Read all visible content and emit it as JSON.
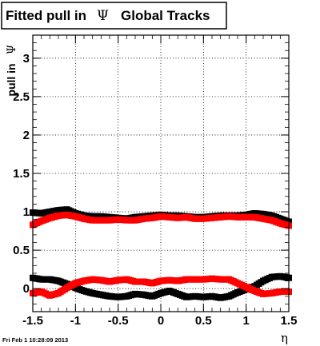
{
  "title": {
    "prefix": "Fitted pull in",
    "symbol": "Ψ",
    "suffix": "Global Tracks"
  },
  "ylabel": {
    "text": "pull in",
    "symbol": "Ψ"
  },
  "xlabel": "η",
  "footer": "Fri Feb  1 10:28:09 2013",
  "chart_data": {
    "type": "scatter",
    "title": "Fitted pull in Ψ Global Tracks",
    "xlabel": "η",
    "ylabel": "pull in Ψ",
    "xlim": [
      -1.5,
      1.5
    ],
    "ylim": [
      -0.3,
      3.3
    ],
    "grid": true,
    "x_ticks": [
      "-1.5",
      "-1",
      "-0.5",
      "0",
      "0.5",
      "1",
      "1.5"
    ],
    "y_ticks": [
      "0",
      "0.5",
      "1",
      "1.5",
      "2",
      "2.5",
      "3"
    ],
    "colors": {
      "black": "#000000",
      "red": "#ff0000"
    },
    "series": [
      {
        "color": "#000000",
        "x": [
          -1.5,
          -1.4,
          -1.3,
          -1.2,
          -1.1,
          -1.0,
          -0.9,
          -0.8,
          -0.7,
          -0.6,
          -0.5,
          -0.4,
          -0.3,
          -0.2,
          -0.1,
          0.0,
          0.1,
          0.2,
          0.3,
          0.4,
          0.5,
          0.6,
          0.7,
          0.8,
          0.9,
          1.0,
          1.1,
          1.2,
          1.3,
          1.4,
          1.5
        ],
        "y": [
          0.99,
          0.98,
          1.0,
          1.02,
          1.03,
          0.98,
          0.95,
          0.94,
          0.94,
          0.93,
          0.92,
          0.91,
          0.93,
          0.94,
          0.95,
          0.96,
          0.95,
          0.95,
          0.94,
          0.93,
          0.93,
          0.94,
          0.95,
          0.95,
          0.95,
          0.96,
          0.98,
          0.97,
          0.95,
          0.91,
          0.87
        ]
      },
      {
        "color": "#ff0000",
        "x": [
          -1.5,
          -1.4,
          -1.3,
          -1.2,
          -1.1,
          -1.0,
          -0.9,
          -0.8,
          -0.7,
          -0.6,
          -0.5,
          -0.4,
          -0.3,
          -0.2,
          -0.1,
          0.0,
          0.1,
          0.2,
          0.3,
          0.4,
          0.5,
          0.6,
          0.7,
          0.8,
          0.9,
          1.0,
          1.1,
          1.2,
          1.3,
          1.4,
          1.5
        ],
        "y": [
          0.83,
          0.88,
          0.92,
          0.95,
          0.96,
          0.94,
          0.91,
          0.89,
          0.89,
          0.89,
          0.9,
          0.89,
          0.89,
          0.91,
          0.92,
          0.94,
          0.93,
          0.92,
          0.93,
          0.91,
          0.91,
          0.92,
          0.93,
          0.94,
          0.93,
          0.93,
          0.93,
          0.91,
          0.89,
          0.85,
          0.82
        ]
      },
      {
        "color": "#000000",
        "x": [
          -1.5,
          -1.4,
          -1.3,
          -1.2,
          -1.1,
          -1.0,
          -0.9,
          -0.8,
          -0.7,
          -0.6,
          -0.5,
          -0.4,
          -0.3,
          -0.2,
          -0.1,
          0.0,
          0.1,
          0.2,
          0.3,
          0.4,
          0.5,
          0.6,
          0.7,
          0.8,
          0.9,
          1.0,
          1.1,
          1.2,
          1.3,
          1.4,
          1.5
        ],
        "y": [
          0.14,
          0.12,
          0.12,
          0.1,
          0.06,
          0.01,
          -0.03,
          -0.06,
          -0.08,
          -0.1,
          -0.11,
          -0.1,
          -0.07,
          -0.08,
          -0.1,
          -0.06,
          -0.03,
          -0.07,
          -0.11,
          -0.1,
          -0.11,
          -0.1,
          -0.12,
          -0.1,
          -0.05,
          -0.01,
          0.03,
          0.1,
          0.15,
          0.16,
          0.14
        ]
      },
      {
        "color": "#ff0000",
        "x": [
          -1.5,
          -1.4,
          -1.3,
          -1.2,
          -1.1,
          -1.0,
          -0.9,
          -0.8,
          -0.7,
          -0.6,
          -0.5,
          -0.4,
          -0.3,
          -0.2,
          -0.1,
          0.0,
          0.1,
          0.2,
          0.3,
          0.4,
          0.5,
          0.6,
          0.7,
          0.8,
          0.9,
          1.0,
          1.1,
          1.2,
          1.3,
          1.4,
          1.5
        ],
        "y": [
          -0.06,
          -0.04,
          -0.09,
          -0.06,
          0.01,
          0.07,
          0.1,
          0.12,
          0.11,
          0.09,
          0.11,
          0.12,
          0.09,
          0.09,
          0.07,
          0.1,
          0.11,
          0.1,
          0.12,
          0.12,
          0.12,
          0.13,
          0.12,
          0.12,
          0.07,
          0.02,
          -0.03,
          -0.07,
          -0.06,
          -0.04,
          -0.04
        ]
      }
    ]
  }
}
